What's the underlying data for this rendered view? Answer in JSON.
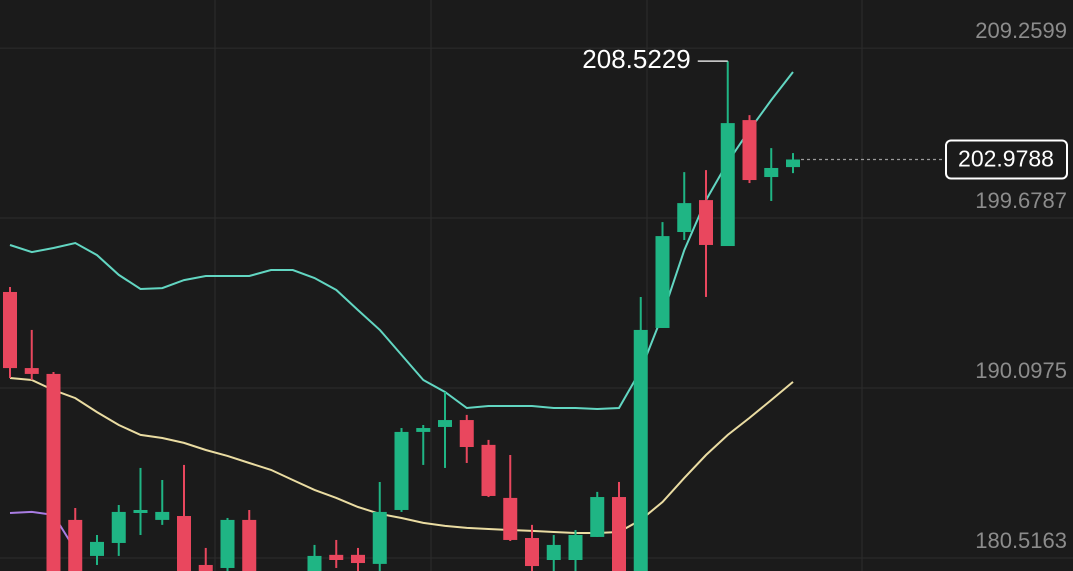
{
  "chart_data": {
    "type": "candlestick",
    "categories": [
      null,
      null,
      null,
      null,
      null,
      null,
      null,
      null,
      null,
      null,
      null,
      null,
      null,
      null,
      null,
      null,
      null,
      null,
      null,
      null,
      null,
      null,
      null,
      null,
      null,
      null,
      null,
      null,
      null,
      null,
      null,
      null,
      null,
      null,
      null,
      null,
      null
    ],
    "open": [
      195.51,
      191.22,
      190.89,
      182.66,
      180.63,
      181.36,
      183.05,
      182.66,
      182.88,
      180.12,
      179.95,
      182.66,
      179.3,
      179.1,
      179.5,
      180.69,
      180.69,
      180.18,
      183.22,
      187.62,
      187.9,
      188.29,
      186.89,
      183.9,
      181.64,
      180.4,
      180.4,
      181.7,
      183.95,
      179.5,
      193.48,
      198.89,
      200.69,
      198.1,
      205.2,
      201.99,
      202.55
    ],
    "high": [
      195.79,
      193.37,
      191.0,
      183.33,
      181.81,
      183.5,
      185.59,
      184.91,
      185.76,
      181.08,
      182.77,
      183.22,
      179.6,
      179.5,
      181.25,
      181.53,
      181.08,
      184.8,
      187.84,
      188.01,
      189.87,
      188.58,
      187.17,
      186.32,
      182.38,
      181.81,
      182.09,
      184.24,
      184.8,
      195.23,
      199.45,
      202.27,
      202.38,
      208.5229,
      205.48,
      203.62,
      203.34
    ],
    "low": [
      190.66,
      190.55,
      179.2,
      179.2,
      180.12,
      180.63,
      181.81,
      182.38,
      179.2,
      179.2,
      179.2,
      179.2,
      178.9,
      178.8,
      179.2,
      179.95,
      179.4,
      179.4,
      183.11,
      185.76,
      185.59,
      185.87,
      183.95,
      181.47,
      179.4,
      179.4,
      179.4,
      181.7,
      179.2,
      179.2,
      193.48,
      198.44,
      195.23,
      198.1,
      201.65,
      200.64,
      202.21
    ],
    "close": [
      191.22,
      190.89,
      179.5,
      179.5,
      181.42,
      183.11,
      183.22,
      183.11,
      179.5,
      179.5,
      182.66,
      179.5,
      179.0,
      179.4,
      180.63,
      180.4,
      180.23,
      183.11,
      187.62,
      187.84,
      188.29,
      186.77,
      184.01,
      181.53,
      180.06,
      181.25,
      181.81,
      183.95,
      179.5,
      193.37,
      198.66,
      200.52,
      198.16,
      205.03,
      201.82,
      202.5,
      202.9788
    ],
    "up_color": "#1fb584",
    "down_color": "#e9475e",
    "overlays": [
      {
        "color": "#62d6c2",
        "values": [
          198.16,
          197.76,
          197.99,
          198.27,
          197.59,
          196.47,
          195.68,
          195.73,
          196.18,
          196.41,
          196.41,
          196.41,
          196.75,
          196.75,
          196.3,
          195.62,
          194.49,
          193.37,
          191.96,
          190.55,
          189.87,
          188.97,
          189.08,
          189.08,
          189.08,
          188.97,
          188.97,
          188.91,
          188.97,
          191.11,
          194.21,
          197.87,
          200.69,
          202.83,
          204.64,
          206.33,
          207.91
        ]
      },
      {
        "color": "#eadca2",
        "values": [
          190.66,
          190.55,
          189.98,
          189.53,
          188.74,
          188.01,
          187.45,
          187.28,
          187.0,
          186.6,
          186.27,
          185.87,
          185.48,
          184.91,
          184.35,
          183.9,
          183.39,
          183.0,
          182.77,
          182.49,
          182.32,
          182.21,
          182.15,
          182.09,
          182.04,
          181.98,
          181.92,
          181.92,
          181.98,
          182.66,
          183.67,
          185.03,
          186.32,
          187.45,
          188.41,
          189.42,
          190.44
        ]
      },
      {
        "color": "#a97de3",
        "values": [
          183.05,
          183.11,
          182.94,
          180.97,
          null,
          null,
          null,
          null,
          null,
          null,
          null,
          null,
          null,
          null,
          null,
          null,
          null,
          null,
          null,
          null,
          null,
          null,
          null,
          null,
          null,
          null,
          null,
          null,
          null,
          null,
          null,
          null,
          null,
          null,
          null,
          null,
          null
        ]
      }
    ],
    "ylim": [
      179.78,
      211.97
    ],
    "yticks": [
      209.2599,
      199.6787,
      190.0975,
      180.5163
    ],
    "grid": true
  }
}
